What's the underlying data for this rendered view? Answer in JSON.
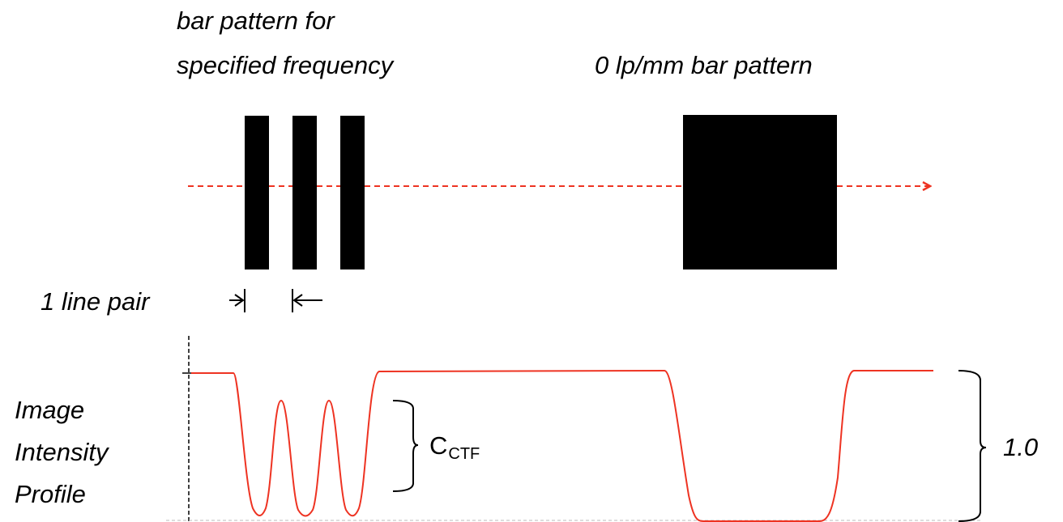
{
  "labels": {
    "freq_pattern_line1": "bar pattern for",
    "freq_pattern_line2": "specified frequency",
    "zero_pattern": "0 lp/mm bar pattern",
    "line_pair": "1 line pair",
    "profile_line1": "Image",
    "profile_line2": "Intensity",
    "profile_line3": "Profile",
    "ctf_main": "C",
    "ctf_sub": "CTF",
    "full_scale": "1.0"
  },
  "colors": {
    "bars": "#000000",
    "profile": "#ee3322",
    "scan_line": "#ee3322",
    "brackets": "#000000"
  }
}
